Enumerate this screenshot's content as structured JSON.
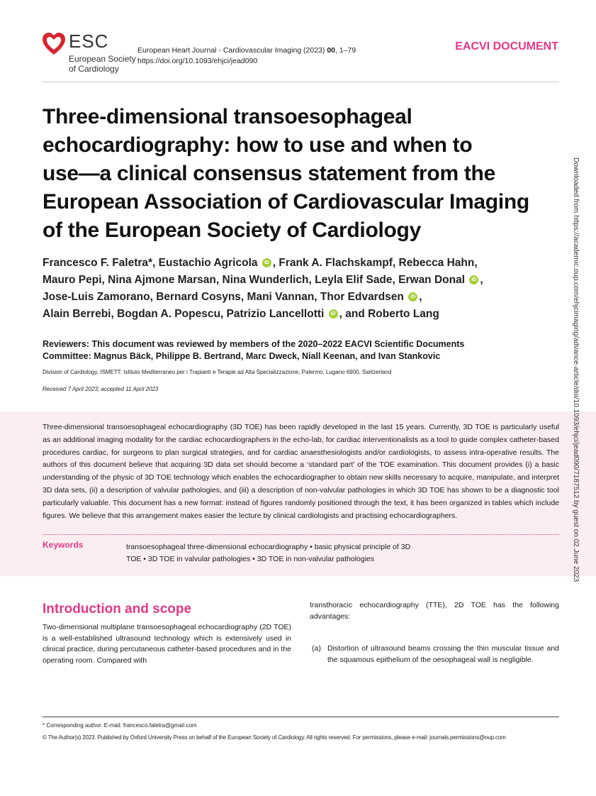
{
  "header": {
    "logo_text": "ESC",
    "logo_sub_1": "European Society",
    "logo_sub_2": "of Cardiology",
    "journal_prefix": "European Heart Journal - Cardiovascular Imaging (2023) ",
    "journal_volume": "00",
    "journal_pages": ", 1–79",
    "doi": "https://doi.org/10.1093/ehjci/jead090",
    "doc_type": "EACVI DOCUMENT"
  },
  "title_lines": [
    "Three-dimensional transoesophageal",
    "echocardiography: how to use and when to",
    "use—a clinical consensus statement from the",
    "European Association of Cardiovascular Imaging",
    "of the European Society of Cardiology"
  ],
  "authors_lines": [
    [
      {
        "t": "Francesco F. Faletra*, Eustachio Agricola",
        "orcid": true
      },
      {
        "t": ", Frank A. Flachskampf, Rebecca Hahn,"
      }
    ],
    [
      {
        "t": "Mauro Pepi, Nina Ajmone Marsan, Nina Wunderlich, Leyla Elif Sade, Erwan Donal",
        "orcid": true
      },
      {
        "t": ","
      }
    ],
    [
      {
        "t": "Jose-Luis Zamorano, Bernard Cosyns, Mani Vannan, Thor Edvardsen",
        "orcid": true
      },
      {
        "t": ","
      }
    ],
    [
      {
        "t": "Alain Berrebi, Bogdan A. Popescu, Patrizio Lancellotti",
        "orcid": true
      },
      {
        "t": ", and Roberto Lang"
      }
    ]
  ],
  "orcid_label": "iD",
  "reviewers": {
    "line1": "Reviewers: This document was reviewed by members of the 2020–2022 EACVI Scientific Documents",
    "line2": "Committee: Magnus Bäck, Philippe B. Bertrand, Marc Dweck, Niall Keenan, and Ivan Stankovic"
  },
  "affiliation": "Division of Cardiology, ISMETT: Istituto Mediterraneo per i Trapianti e Terapie ad Alta Specializzazione, Palermo, Lugano 6900, Switzerland",
  "dates": "Received 7 April 2023; accepted 11 April 2023",
  "abstract": "Three-dimensional transoesophageal echocardiography (3D TOE) has been rapidly developed in the last 15 years. Currently, 3D TOE is particularly useful as an additional imaging modality for the cardiac echocardiographers in the echo-lab, for cardiac interventionalists as a tool to guide complex catheter-based procedures cardiac, for surgeons to plan surgical strategies, and for cardiac anaesthesiologists and/or cardiologists, to assess intra-operative results. The authors of this document believe that acquiring 3D data set should become a ‘standard part’ of the TOE examination. This document provides (i) a basic understanding of the physic of 3D TOE technology which enables the echocardiographer to obtain new skills necessary to acquire, manipulate, and interpret 3D data sets, (ii) a description of valvular pathologies, and (iii) a description of non-valvular pathologies in which 3D TOE has shown to be a diagnostic tool particularly valuable. This document has a new format: instead of figures randomly positioned through the text, it has been organized in tables which include figures. We believe that this arrangement makes easier the lecture by clinical cardiologists and practising echocardiographers.",
  "keywords": {
    "label": "Keywords",
    "text": "transoesophageal three-dimensional echocardiography • basic physical principle of 3D TOE • 3D TOE in valvular pathologies • 3D TOE in non-valvular pathologies"
  },
  "intro": {
    "heading": "Introduction and scope",
    "left_text": "Two-dimensional multiplane transoesophageal echocardiography (2D TOE) is a well-established ultrasound technology which is extensively used in clinical practice, during percutaneous catheter-based procedures and in the operating room. Compared with",
    "right_text": "transthoracic echocardiography (TTE), 2D TOE has the following advantages:",
    "item_a_label": "(a)",
    "item_a_text": "Distortion of ultrasound beams crossing the thin muscular tissue and the squamous epithelium of the oesophageal wall is negligible."
  },
  "side_note": "Downloaded from https://academic.oup.com/ehjcimaging/advance-article/doi/10.1093/ehjci/jead090/7187512 by guest on 02 June 2023",
  "footer": {
    "corresponding": "* Corresponding author. E-mail: francesco.faletra@gmail.com",
    "copyright": "© The Author(s) 2023. Published by Oxford University Press on behalf of the European Society of Cardiology. All rights reserved. For permissions, please e-mail: journals.permissions@oup.com"
  },
  "colors": {
    "accent": "#e03a86",
    "logo_red": "#d6262e",
    "abstract_bg": "#fbeef3",
    "orcid": "#a6ce39"
  }
}
